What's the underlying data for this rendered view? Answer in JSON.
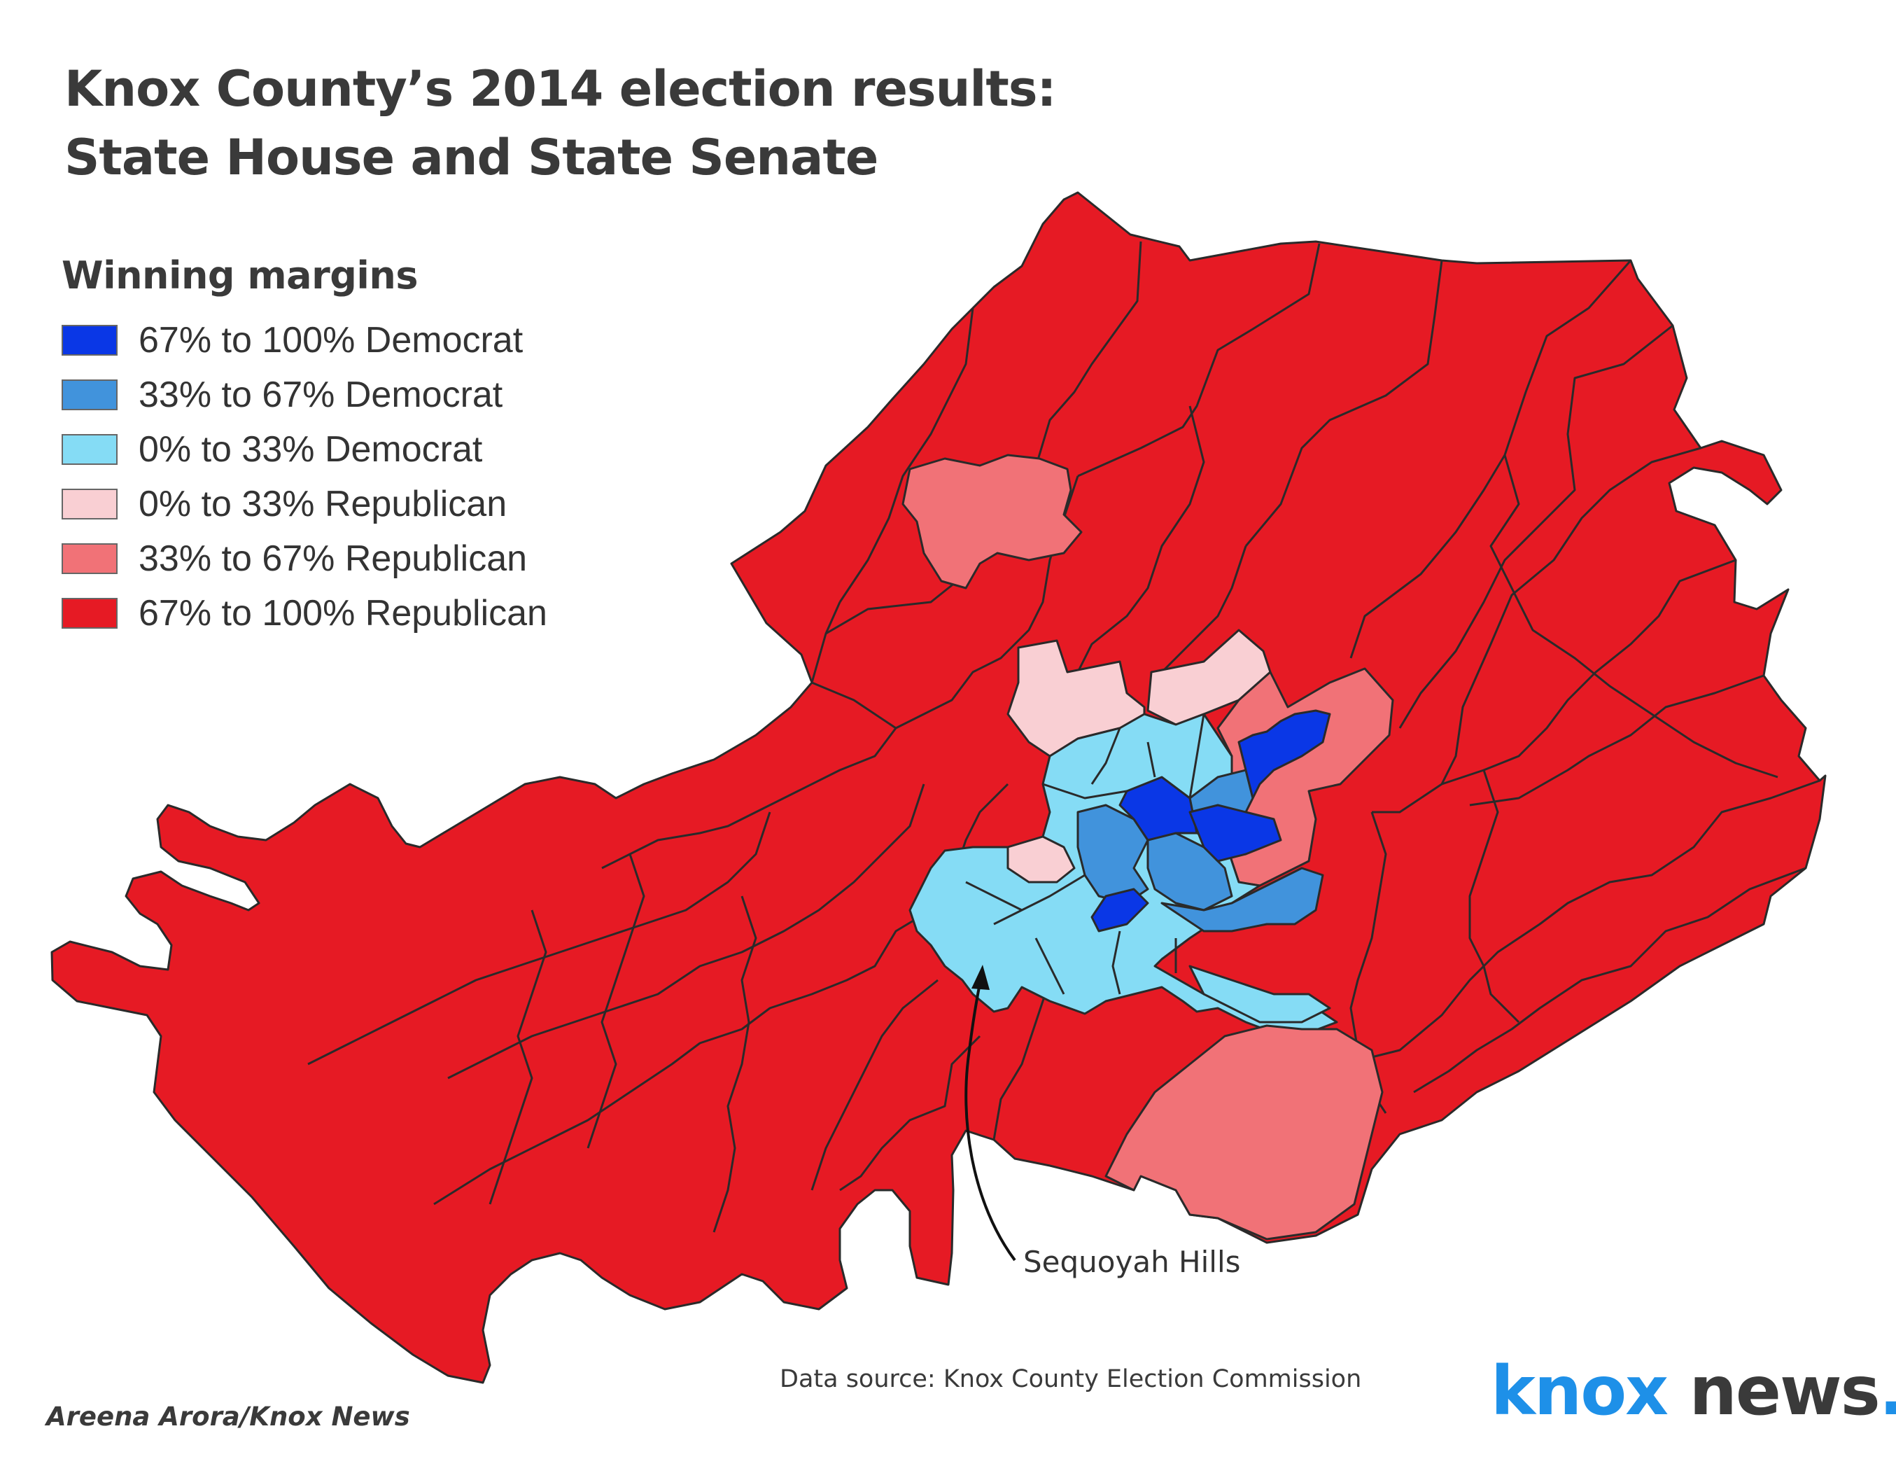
{
  "title": {
    "line1": "Knox County’s 2014 election results:",
    "line2": "State House and State Senate"
  },
  "legend": {
    "title": "Winning margins",
    "items": [
      {
        "label": "67% to 100% Democrat",
        "color": "#0a37e6"
      },
      {
        "label": "33% to 67% Democrat",
        "color": "#4193dc"
      },
      {
        "label": "0% to 33% Democrat",
        "color": "#85dcf5"
      },
      {
        "label": "0% to 33% Republican",
        "color": "#f9cfd3"
      },
      {
        "label": "33% to 67% Republican",
        "color": "#f17277"
      },
      {
        "label": "67% to 100% Republican",
        "color": "#e61a24"
      }
    ]
  },
  "annotation": {
    "label": "Sequoyah Hills"
  },
  "source": "Data source: Knox County Election Commission",
  "credit": "Areena Arora/Knox News",
  "logo": {
    "knox": "knox",
    "news": "news",
    "dot": "."
  },
  "colors": {
    "border": "#2a2a2a",
    "text": "#333333",
    "logo_blue": "#1e90e8"
  }
}
